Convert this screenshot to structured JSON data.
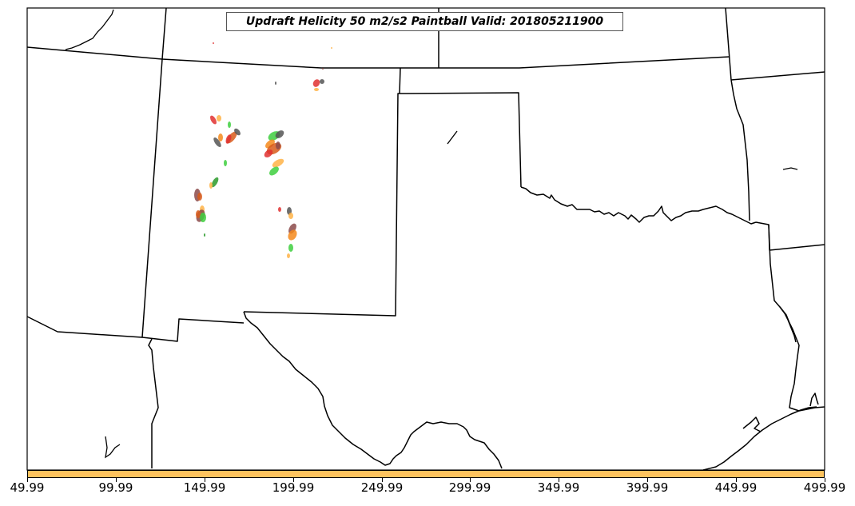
{
  "title": "Updraft Helicity 50 m2/s2 Paintball Valid: 201805211900",
  "colorbar": {
    "fill_color": "#fec35e",
    "tick_labels": [
      "49.99",
      "99.99",
      "149.99",
      "199.99",
      "249.99",
      "299.99",
      "349.99",
      "399.99",
      "449.99",
      "499.99"
    ]
  },
  "map": {
    "background": "#ffffff",
    "border_color": "#000000",
    "paintball_colors": [
      "#e03030",
      "#f58a1c",
      "#ffb347",
      "#3ecf3e",
      "#2a9a2a",
      "#555555",
      "#8b4a4a",
      "#d85a1a"
    ]
  }
}
